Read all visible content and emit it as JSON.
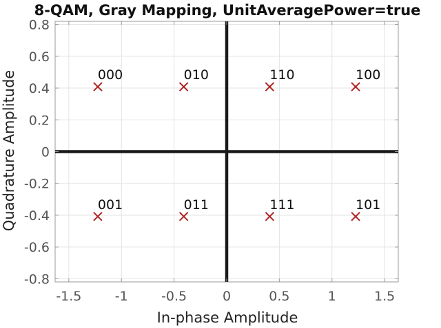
{
  "chart_data": {
    "type": "scatter",
    "title": "8-QAM, Gray Mapping, UnitAveragePower=true",
    "xlabel": "In-phase Amplitude",
    "ylabel": "Quadrature Amplitude",
    "xlim": [
      -1.63,
      1.63
    ],
    "ylim": [
      -0.82,
      0.82
    ],
    "xticks": [
      -1.5,
      -1,
      -0.5,
      0,
      0.5,
      1,
      1.5
    ],
    "xtick_labels": [
      "-1.5",
      "-1",
      "-0.5",
      "0",
      "0.5",
      "1",
      "1.5"
    ],
    "yticks": [
      -0.8,
      -0.6,
      -0.4,
      -0.2,
      0,
      0.2,
      0.4,
      0.6,
      0.8
    ],
    "ytick_labels": [
      "-0.8",
      "-0.6",
      "-0.4",
      "-0.2",
      "0",
      "0.2",
      "0.4",
      "0.6",
      "0.8"
    ],
    "grid": true,
    "marker": "x",
    "marker_color": "#b22222",
    "axis_line_color": "#1a1a1a",
    "points": [
      {
        "x": -1.2247,
        "y": 0.4082,
        "label": "000"
      },
      {
        "x": -0.4082,
        "y": 0.4082,
        "label": "010"
      },
      {
        "x": 0.4082,
        "y": 0.4082,
        "label": "110"
      },
      {
        "x": 1.2247,
        "y": 0.4082,
        "label": "100"
      },
      {
        "x": -1.2247,
        "y": -0.4082,
        "label": "001"
      },
      {
        "x": -0.4082,
        "y": -0.4082,
        "label": "011"
      },
      {
        "x": 0.4082,
        "y": -0.4082,
        "label": "111"
      },
      {
        "x": 1.2247,
        "y": -0.4082,
        "label": "101"
      }
    ]
  }
}
